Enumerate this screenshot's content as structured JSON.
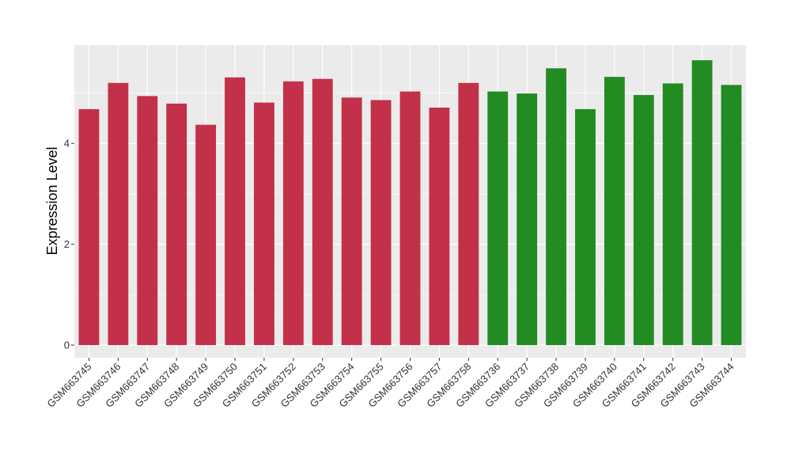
{
  "chart_data": {
    "type": "bar",
    "title": "",
    "xlabel": "",
    "ylabel": "Expression Level",
    "ylim": [
      -0.25,
      5.95
    ],
    "yticks": [
      0,
      2,
      4
    ],
    "grid": true,
    "legend": "none",
    "categories": [
      "GSM663745",
      "GSM663746",
      "GSM663747",
      "GSM663748",
      "GSM663749",
      "GSM663750",
      "GSM663751",
      "GSM663752",
      "GSM663753",
      "GSM663754",
      "GSM663755",
      "GSM663756",
      "GSM663757",
      "GSM663758",
      "GSM663736",
      "GSM663737",
      "GSM663738",
      "GSM663739",
      "GSM663740",
      "GSM663741",
      "GSM663742",
      "GSM663743",
      "GSM663744"
    ],
    "values": [
      4.68,
      5.2,
      4.94,
      4.79,
      4.37,
      5.31,
      4.81,
      5.23,
      5.28,
      4.91,
      4.86,
      5.03,
      4.71,
      5.2,
      5.03,
      4.99,
      5.49,
      4.68,
      5.32,
      4.96,
      5.19,
      5.65,
      5.16
    ],
    "bar_colors": [
      "#C3304A",
      "#C3304A",
      "#C3304A",
      "#C3304A",
      "#C3304A",
      "#C3304A",
      "#C3304A",
      "#C3304A",
      "#C3304A",
      "#C3304A",
      "#C3304A",
      "#C3304A",
      "#C3304A",
      "#C3304A",
      "#228B22",
      "#228B22",
      "#228B22",
      "#228B22",
      "#228B22",
      "#228B22",
      "#228B22",
      "#228B22",
      "#228B22"
    ],
    "panel_background": "#EBEBEB",
    "grid_color": "#FFFFFF"
  }
}
